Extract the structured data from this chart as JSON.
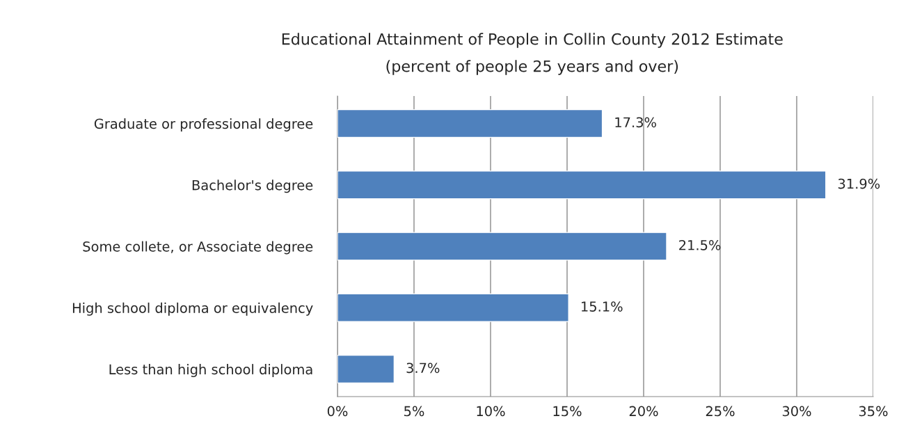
{
  "chart_data": {
    "type": "bar",
    "orientation": "horizontal",
    "title": "Educational Attainment of People in Collin County 2012 Estimate",
    "subtitle": "(percent of people 25 years and over)",
    "categories": [
      "Graduate or professional degree",
      "Bachelor's degree",
      "Some collete, or Associate degree",
      "High school diploma or equivalency",
      "Less than high school diploma"
    ],
    "values": [
      17.3,
      31.9,
      21.5,
      15.1,
      3.7
    ],
    "value_labels": [
      "17.3%",
      "31.9%",
      "21.5%",
      "15.1%",
      "3.7%"
    ],
    "color": "#4f81bd",
    "xlim": [
      0,
      35
    ],
    "xticks": [
      {
        "value": 0,
        "label": "0%"
      },
      {
        "value": 5,
        "label": "5%"
      },
      {
        "value": 10,
        "label": "10%"
      },
      {
        "value": 15,
        "label": "15%"
      },
      {
        "value": 20,
        "label": "20%"
      },
      {
        "value": 25,
        "label": "25%"
      },
      {
        "value": 30,
        "label": "30%"
      },
      {
        "value": 35,
        "label": "35%"
      }
    ],
    "grid": "x"
  }
}
